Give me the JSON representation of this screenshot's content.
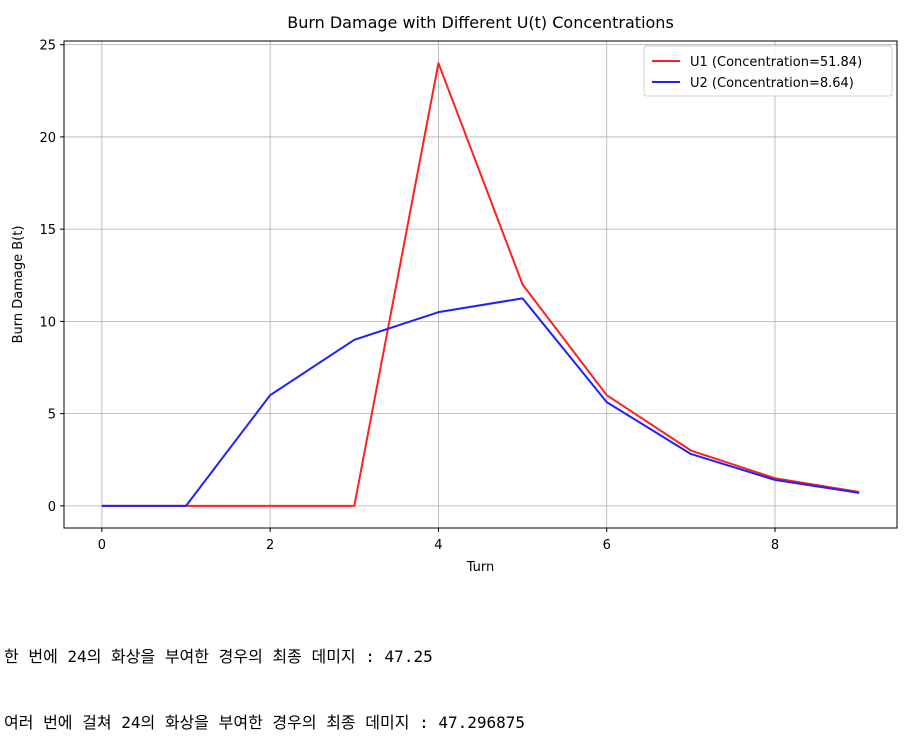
{
  "chart_data": {
    "type": "line",
    "title": "Burn Damage with Different U(t) Concentrations",
    "xlabel": "Turn",
    "ylabel": "Burn Damage B(t)",
    "xlim": [
      -0.45,
      9.45
    ],
    "ylim": [
      -1.2,
      25.2
    ],
    "xticks": [
      0,
      2,
      4,
      6,
      8
    ],
    "yticks": [
      0,
      5,
      10,
      15,
      20,
      25
    ],
    "grid": true,
    "legend": "top-right",
    "series": [
      {
        "name": "U1 (Concentration=51.84)",
        "color": "#ff2020",
        "x": [
          0,
          1,
          2,
          3,
          4,
          5,
          6,
          7,
          8,
          9
        ],
        "y": [
          0,
          0,
          0,
          0,
          24,
          12,
          6,
          3,
          1.5,
          0.75
        ]
      },
      {
        "name": "U2 (Concentration=8.64)",
        "color": "#2020ff",
        "x": [
          0,
          1,
          2,
          3,
          4,
          5,
          6,
          7,
          8,
          9
        ],
        "y": [
          0,
          0,
          6,
          9,
          10.5,
          11.25,
          5.625,
          2.8125,
          1.40625,
          0.703125
        ]
      }
    ]
  },
  "output": {
    "line1": "한 번에 24의 화상을 부여한 경우의 최종 데미지 : 47.25",
    "line2": "여러 번에 걸쳐 24의 화상을 부여한 경우의 최종 데미지 : 47.296875"
  }
}
